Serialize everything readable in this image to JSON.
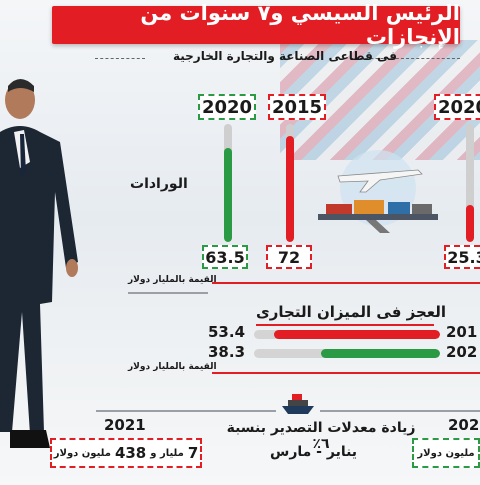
{
  "title": "الرئيس السيسي و٧ سنوات من الإنجازات",
  "subtitle": "فى قطاعى الصناعة والتجارة الخارجية",
  "imports": {
    "label": "الورادات",
    "years": [
      "2020",
      "2015",
      "2020"
    ],
    "values": [
      "63.5",
      "72",
      "25.3"
    ],
    "unit_label": "القيمة بالمليار دولار"
  },
  "deficit": {
    "label": "العجز فى الميزان التجارى",
    "rows": [
      {
        "year": "201",
        "value": "53.4",
        "color": "#e21e24"
      },
      {
        "year": "202",
        "value": "38.3",
        "color": "#2a9a45"
      }
    ],
    "unit_label": "القيمة بالمليار دولار"
  },
  "exports": {
    "headline": "زيادة معدلات التصدير بنسبة ٦٪",
    "period": "يناير - مارس",
    "left_year": "2021",
    "left_value_a": "7",
    "left_value_b": "مليار و",
    "left_value_c": "438",
    "left_value_d": "مليون دولار",
    "right_year": "202",
    "right_value": "مليون دولار"
  },
  "chart_data": [
    {
      "type": "bar",
      "title": "الورادات",
      "categories": [
        "2020",
        "2015",
        "2020"
      ],
      "values": [
        63.5,
        72,
        25.3
      ],
      "ylabel": "القيمة بالمليار دولار",
      "ylim": [
        0,
        80
      ]
    },
    {
      "type": "bar",
      "title": "العجز فى الميزان التجارى",
      "categories": [
        "201",
        "202"
      ],
      "values": [
        53.4,
        38.3
      ],
      "ylabel": "القيمة بالمليار دولار",
      "ylim": [
        0,
        60
      ]
    }
  ],
  "colors": {
    "red": "#e21e24",
    "green": "#2a9a45",
    "grey": "#cfcfcf"
  }
}
